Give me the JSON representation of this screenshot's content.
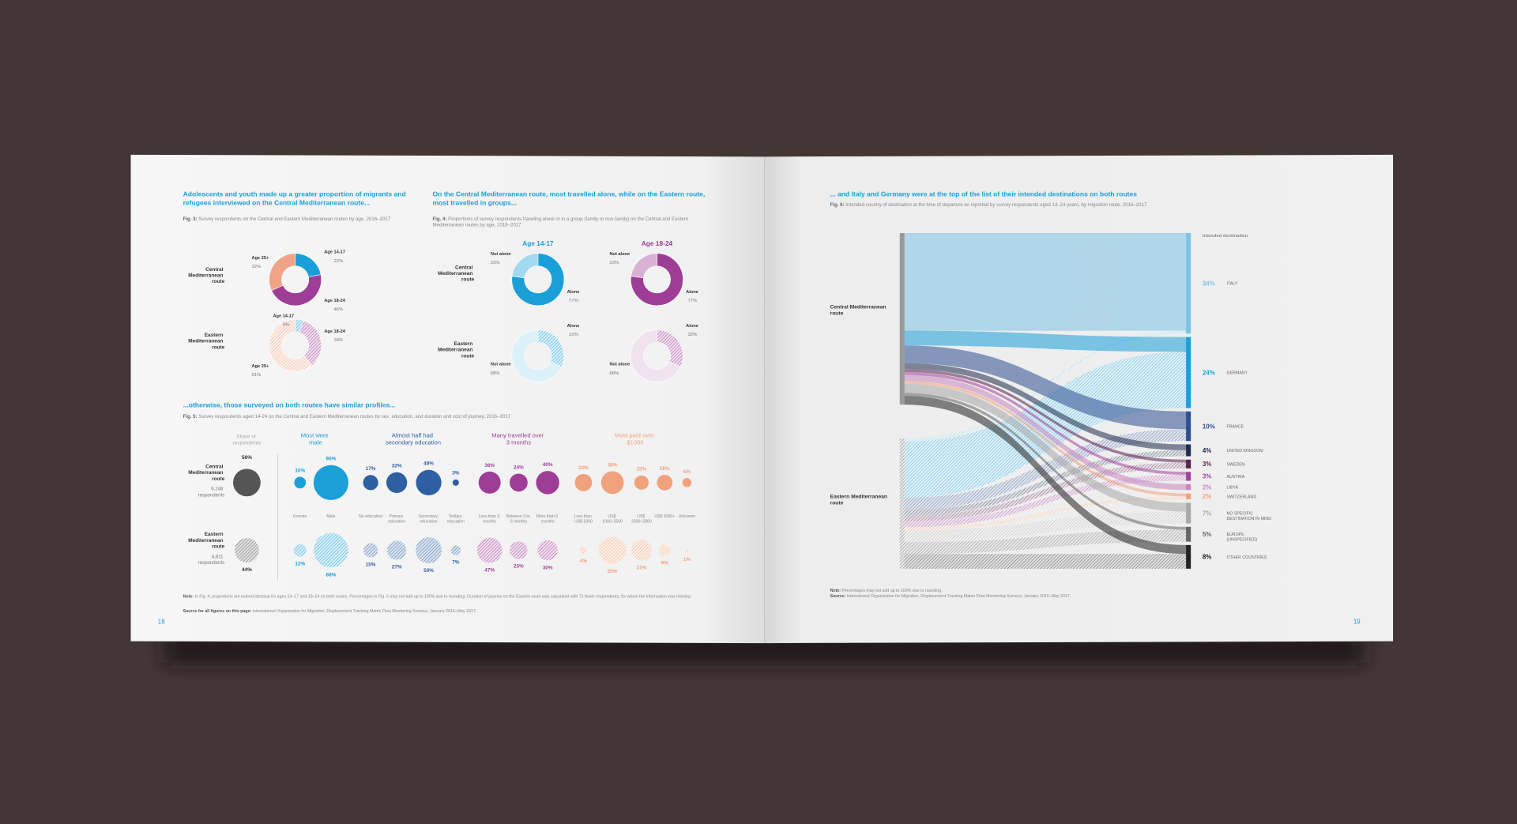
{
  "left_page": {
    "page_number": "18",
    "fig3": {
      "heading": "Adolescents and youth made up a greater proportion of migrants and refugees interviewed on the Central Mediterranean route...",
      "caption": {
        "label": "Fig. 3:",
        "text": "Survey respondents on the Central and Eastern Mediterranean routes by age, 2016–2017"
      },
      "categories": [
        "Age 14-17",
        "Age 18-24",
        "Age 25+"
      ],
      "colors": [
        "#1a9fd9",
        "#9e3d96",
        "#f0a487"
      ],
      "rows": [
        {
          "route": "Central Mediterranean route",
          "values": [
            22,
            46,
            32
          ],
          "value_labels": [
            "22%",
            "46%",
            "32%"
          ]
        },
        {
          "route": "Eastern Mediterranean route",
          "values": [
            5,
            34,
            61
          ],
          "value_labels": [
            "5%",
            "34%",
            "61%"
          ]
        }
      ]
    },
    "fig4": {
      "heading": "On the Central Mediterranean route, most travelled alone, while on the Eastern route, most travelled in groups...",
      "caption": {
        "label": "Fig. 4:",
        "text": "Proportions of survey respondents traveling alone or in a group (family or non-family) on the Central and Eastern Mediterranean routes by age, 2016–2017"
      },
      "routes": [
        "Central Mediterranean route",
        "Eastern Mediterranean route"
      ],
      "categories": [
        "Alone",
        "Not alone"
      ],
      "groups": [
        {
          "title": "Age 14-17",
          "color": "#1a9fd9",
          "rows": [
            {
              "values": [
                77,
                23
              ],
              "value_labels": [
                "77%",
                "23%"
              ]
            },
            {
              "values": [
                32,
                68
              ],
              "value_labels": [
                "32%",
                "68%"
              ]
            }
          ]
        },
        {
          "title": "Age 18-24",
          "color": "#9e3d96",
          "rows": [
            {
              "values": [
                77,
                23
              ],
              "value_labels": [
                "77%",
                "23%"
              ]
            },
            {
              "values": [
                32,
                68
              ],
              "value_labels": [
                "32%",
                "68%"
              ]
            }
          ]
        }
      ]
    },
    "fig5": {
      "heading": "...otherwise, those surveyed on both routes have similar profiles...",
      "caption": {
        "label": "Fig. 5:",
        "text": "Survey respondents aged 14-24 on the Central and Eastern Mediterranean routes by sex, education, and duration and cost of journey, 2016–2017"
      },
      "share": {
        "title": "Share of respondents",
        "color": "#555555",
        "rows": [
          {
            "route": "Central Mediterranean route",
            "value": 56,
            "value_label": "56%",
            "respondents": "6,248 respondents"
          },
          {
            "route": "Eastern Mediterranean route",
            "value": 44,
            "value_label": "44%",
            "respondents": "4,811 respondents"
          }
        ]
      },
      "groups": [
        {
          "title": "Most were male",
          "color": "#1a9fd9",
          "categories": [
            "Female",
            "Male"
          ],
          "rows": [
            {
              "values": [
                10,
                90
              ],
              "value_labels": [
                "10%",
                "90%"
              ]
            },
            {
              "values": [
                12,
                88
              ],
              "value_labels": [
                "12%",
                "88%"
              ]
            }
          ]
        },
        {
          "title": "Almost half had secondary education",
          "color": "#2e5fa3",
          "categories": [
            "No education",
            "Primary education",
            "Secondary education",
            "Tertiary education"
          ],
          "rows": [
            {
              "values": [
                17,
                32,
                48,
                3
              ],
              "value_labels": [
                "17%",
                "32%",
                "48%",
                "3%"
              ]
            },
            {
              "values": [
                15,
                27,
                50,
                7
              ],
              "value_labels": [
                "15%",
                "27%",
                "50%",
                "7%"
              ]
            }
          ]
        },
        {
          "title": "Many travelled over 3 months",
          "color": "#9e3d96",
          "categories": [
            "Less than 3 months",
            "Between 3 to 6 months",
            "More than 6 months"
          ],
          "rows": [
            {
              "values": [
                36,
                24,
                40
              ],
              "value_labels": [
                "36%",
                "24%",
                "40%"
              ]
            },
            {
              "values": [
                47,
                23,
                30
              ],
              "value_labels": [
                "47%",
                "23%",
                "30%"
              ]
            }
          ]
        },
        {
          "title": "Most paid over $1000",
          "color": "#f0a27c",
          "categories": [
            "Less than US$ 1000",
            "US$ 1000–2500",
            "US$ 2500–5000",
            "US$ 5000+",
            "Unknown"
          ],
          "rows": [
            {
              "values": [
                22,
                38,
                15,
                18,
                6
              ],
              "value_labels": [
                "22%",
                "38%",
                "15%",
                "18%",
                "6%"
              ]
            },
            {
              "values": [
                4,
                55,
                31,
                9,
                1
              ],
              "value_labels": [
                "4%",
                "55%",
                "31%",
                "9%",
                "1%"
              ]
            }
          ]
        }
      ]
    },
    "notes": [
      {
        "label": "Note:",
        "text": "In Fig. 4, proportions are indeed identical for ages 14–17 and 18–24 on both routes. Percentages in Fig. 5 may not add up to 100% due to rounding. Duration of journey on the Eastern route was calculated with 71 fewer respondents, for whom the information was missing."
      },
      {
        "label": "Source for all figures on this page:",
        "text": "International Organization for Migration, Displacement Tracking Matrix Flow Monitoring Surveys, January 2016–May 2017."
      }
    ]
  },
  "right_page": {
    "page_number": "19",
    "heading": "... and Italy and Germany were at the top of the list of their intended destinations on both routes",
    "caption": {
      "label": "Fig. 6:",
      "text": "Intended country of destination at the time of departure as reported by survey respondents aged 14–24 years, by migration route, 2016–2017"
    },
    "sankey": {
      "sources": [
        "Central Mediterranean route",
        "Eastern Mediterranean route"
      ],
      "destinations_title": "Intended destination",
      "destinations": [
        {
          "name": "ITALY",
          "value": 34,
          "value_label": "34%",
          "color": "#7cc3e4"
        },
        {
          "name": "GERMANY",
          "value": 24,
          "value_label": "24%",
          "color": "#1a9fd9"
        },
        {
          "name": "FRANCE",
          "value": 10,
          "value_label": "10%",
          "color": "#2e4f8f"
        },
        {
          "name": "UNITED KINGDOM",
          "value": 4,
          "value_label": "4%",
          "color": "#1f2b4d"
        },
        {
          "name": "SWEDEN",
          "value": 3,
          "value_label": "3%",
          "color": "#5a1f4f"
        },
        {
          "name": "AUSTRIA",
          "value": 3,
          "value_label": "3%",
          "color": "#a0449a"
        },
        {
          "name": "LIBYA",
          "value": 2,
          "value_label": "2%",
          "color": "#c987c0"
        },
        {
          "name": "SWITZERLAND",
          "value": 2,
          "value_label": "2%",
          "color": "#f0a27c"
        },
        {
          "name": "NO SPECIFIC DESTINATION IN MIND",
          "value": 7,
          "value_label": "7%",
          "color": "#a8a8a8"
        },
        {
          "name": "EUROPE (UNSPECIFIED)",
          "value": 5,
          "value_label": "5%",
          "color": "#666666"
        },
        {
          "name": "OTHER COUNTRIES",
          "value": 8,
          "value_label": "8%",
          "color": "#222222"
        }
      ],
      "flows": {
        "central": [
          33,
          5,
          6,
          2,
          1,
          1,
          2,
          1,
          3,
          1,
          3
        ],
        "eastern": [
          1,
          19,
          4,
          2,
          2,
          2,
          0,
          1,
          4,
          4,
          5
        ]
      }
    },
    "notes": [
      {
        "label": "Note:",
        "text": "Percentages may not add up to 100% due to rounding."
      },
      {
        "label": "Source:",
        "text": "International Organization for Migration, Displacement Tracking Matrix Flow Monitoring Surveys, January 2016–May 2017."
      }
    ]
  }
}
